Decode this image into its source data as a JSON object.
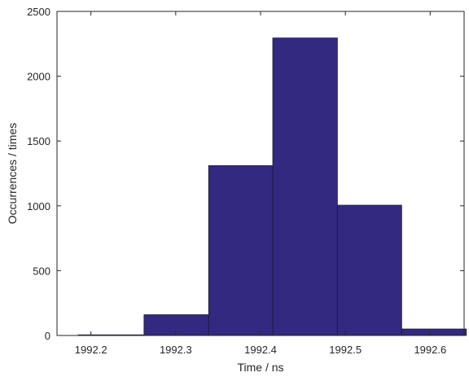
{
  "chart_data": {
    "type": "bar",
    "subtype": "histogram",
    "xlabel": "Time / ns",
    "ylabel": "Occurrences / times",
    "xlim": [
      1992.16,
      1992.64
    ],
    "ylim": [
      0,
      2500
    ],
    "xticks": [
      1992.2,
      1992.3,
      1992.4,
      1992.5,
      1992.6
    ],
    "xtick_labels": [
      "1992.2",
      "1992.3",
      "1992.4",
      "1992.5",
      "1992.6"
    ],
    "yticks": [
      0,
      500,
      1000,
      1500,
      2000,
      2500
    ],
    "ytick_labels": [
      "0",
      "500",
      "1000",
      "1500",
      "2000",
      "2500"
    ],
    "bin_edges": [
      1992.185,
      1992.2626,
      1992.3388,
      1992.4144,
      1992.4906,
      1992.5664,
      1992.6426
    ],
    "values": [
      5,
      160,
      1310,
      2295,
      1005,
      50
    ],
    "grid": false,
    "bar_color": "#332980",
    "edge_color": "#1a1a2e"
  }
}
